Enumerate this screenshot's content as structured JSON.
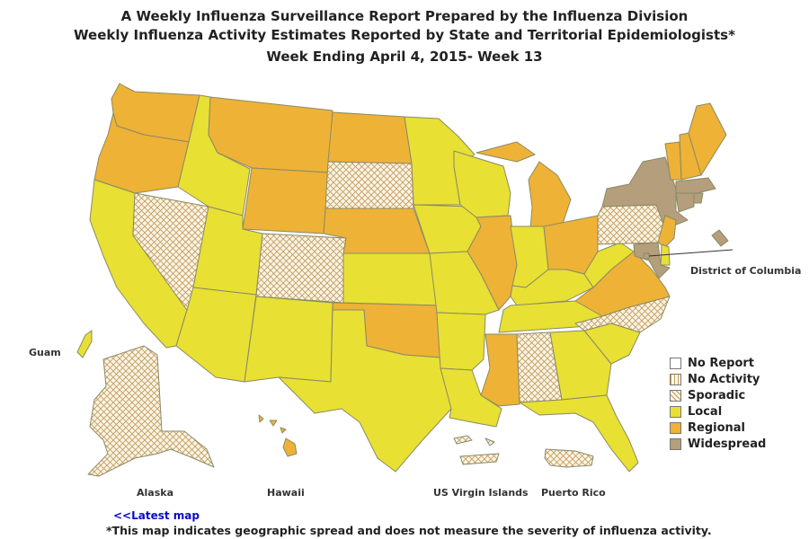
{
  "title": {
    "line1": "A Weekly Influenza Surveillance Report Prepared by the Influenza Division",
    "line2": "Weekly Influenza Activity Estimates Reported by State and Territorial Epidemiologists*",
    "line3": "Week Ending April 4, 2015- Week 13"
  },
  "colors": {
    "no_report": "#ffffff",
    "no_activity": "#fffaf0",
    "sporadic": "#fbf4e4",
    "local": "#e8e033",
    "regional": "#eeb236",
    "widespread": "#b49e7b",
    "border": "#8a8a66"
  },
  "legend": [
    {
      "key": "no_report",
      "label": "No Report"
    },
    {
      "key": "no_activity",
      "label": "No Activity"
    },
    {
      "key": "sporadic",
      "label": "Sporadic"
    },
    {
      "key": "local",
      "label": "Local"
    },
    {
      "key": "regional",
      "label": "Regional"
    },
    {
      "key": "widespread",
      "label": "Widespread"
    }
  ],
  "labels": {
    "guam": "Guam",
    "alaska": "Alaska",
    "hawaii": "Hawaii",
    "usvi": "US Virgin Islands",
    "puerto_rico": "Puerto Rico",
    "dc": "District of Columbia"
  },
  "activity": {
    "WA": "Regional",
    "OR": "Regional",
    "CA": "Local",
    "NV": "Sporadic",
    "ID": "Local",
    "MT": "Regional",
    "WY": "Regional",
    "UT": "Local",
    "AZ": "Local",
    "CO": "Sporadic",
    "NM": "Local",
    "ND": "Regional",
    "SD": "Sporadic",
    "NE": "Regional",
    "KS": "Local",
    "OK": "Regional",
    "TX": "Local",
    "MN": "Local",
    "IA": "Local",
    "MO": "Local",
    "AR": "Local",
    "LA": "Local",
    "WI": "Local",
    "IL": "Regional",
    "MI": "Regional",
    "IN": "Local",
    "OH": "Regional",
    "KY": "Local",
    "TN": "Local",
    "MS": "Regional",
    "AL": "Sporadic",
    "GA": "Local",
    "FL": "Local",
    "SC": "Local",
    "NC": "Sporadic",
    "VA": "Regional",
    "WV": "Local",
    "PA": "Sporadic",
    "NY": "Widespread",
    "VT": "Regional",
    "NH": "Regional",
    "ME": "Regional",
    "MA": "Widespread",
    "CT": "Widespread",
    "RI": "Widespread",
    "NJ": "Regional",
    "DE": "Local",
    "MD": "Widespread",
    "DC": "Widespread",
    "AK": "Sporadic",
    "HI": "Regional",
    "GU": "Local",
    "PR": "Sporadic",
    "VI": "Sporadic"
  },
  "footer": {
    "link": "<<Latest map",
    "note": "*This map indicates geographic spread and does not measure the severity of influenza activity."
  }
}
